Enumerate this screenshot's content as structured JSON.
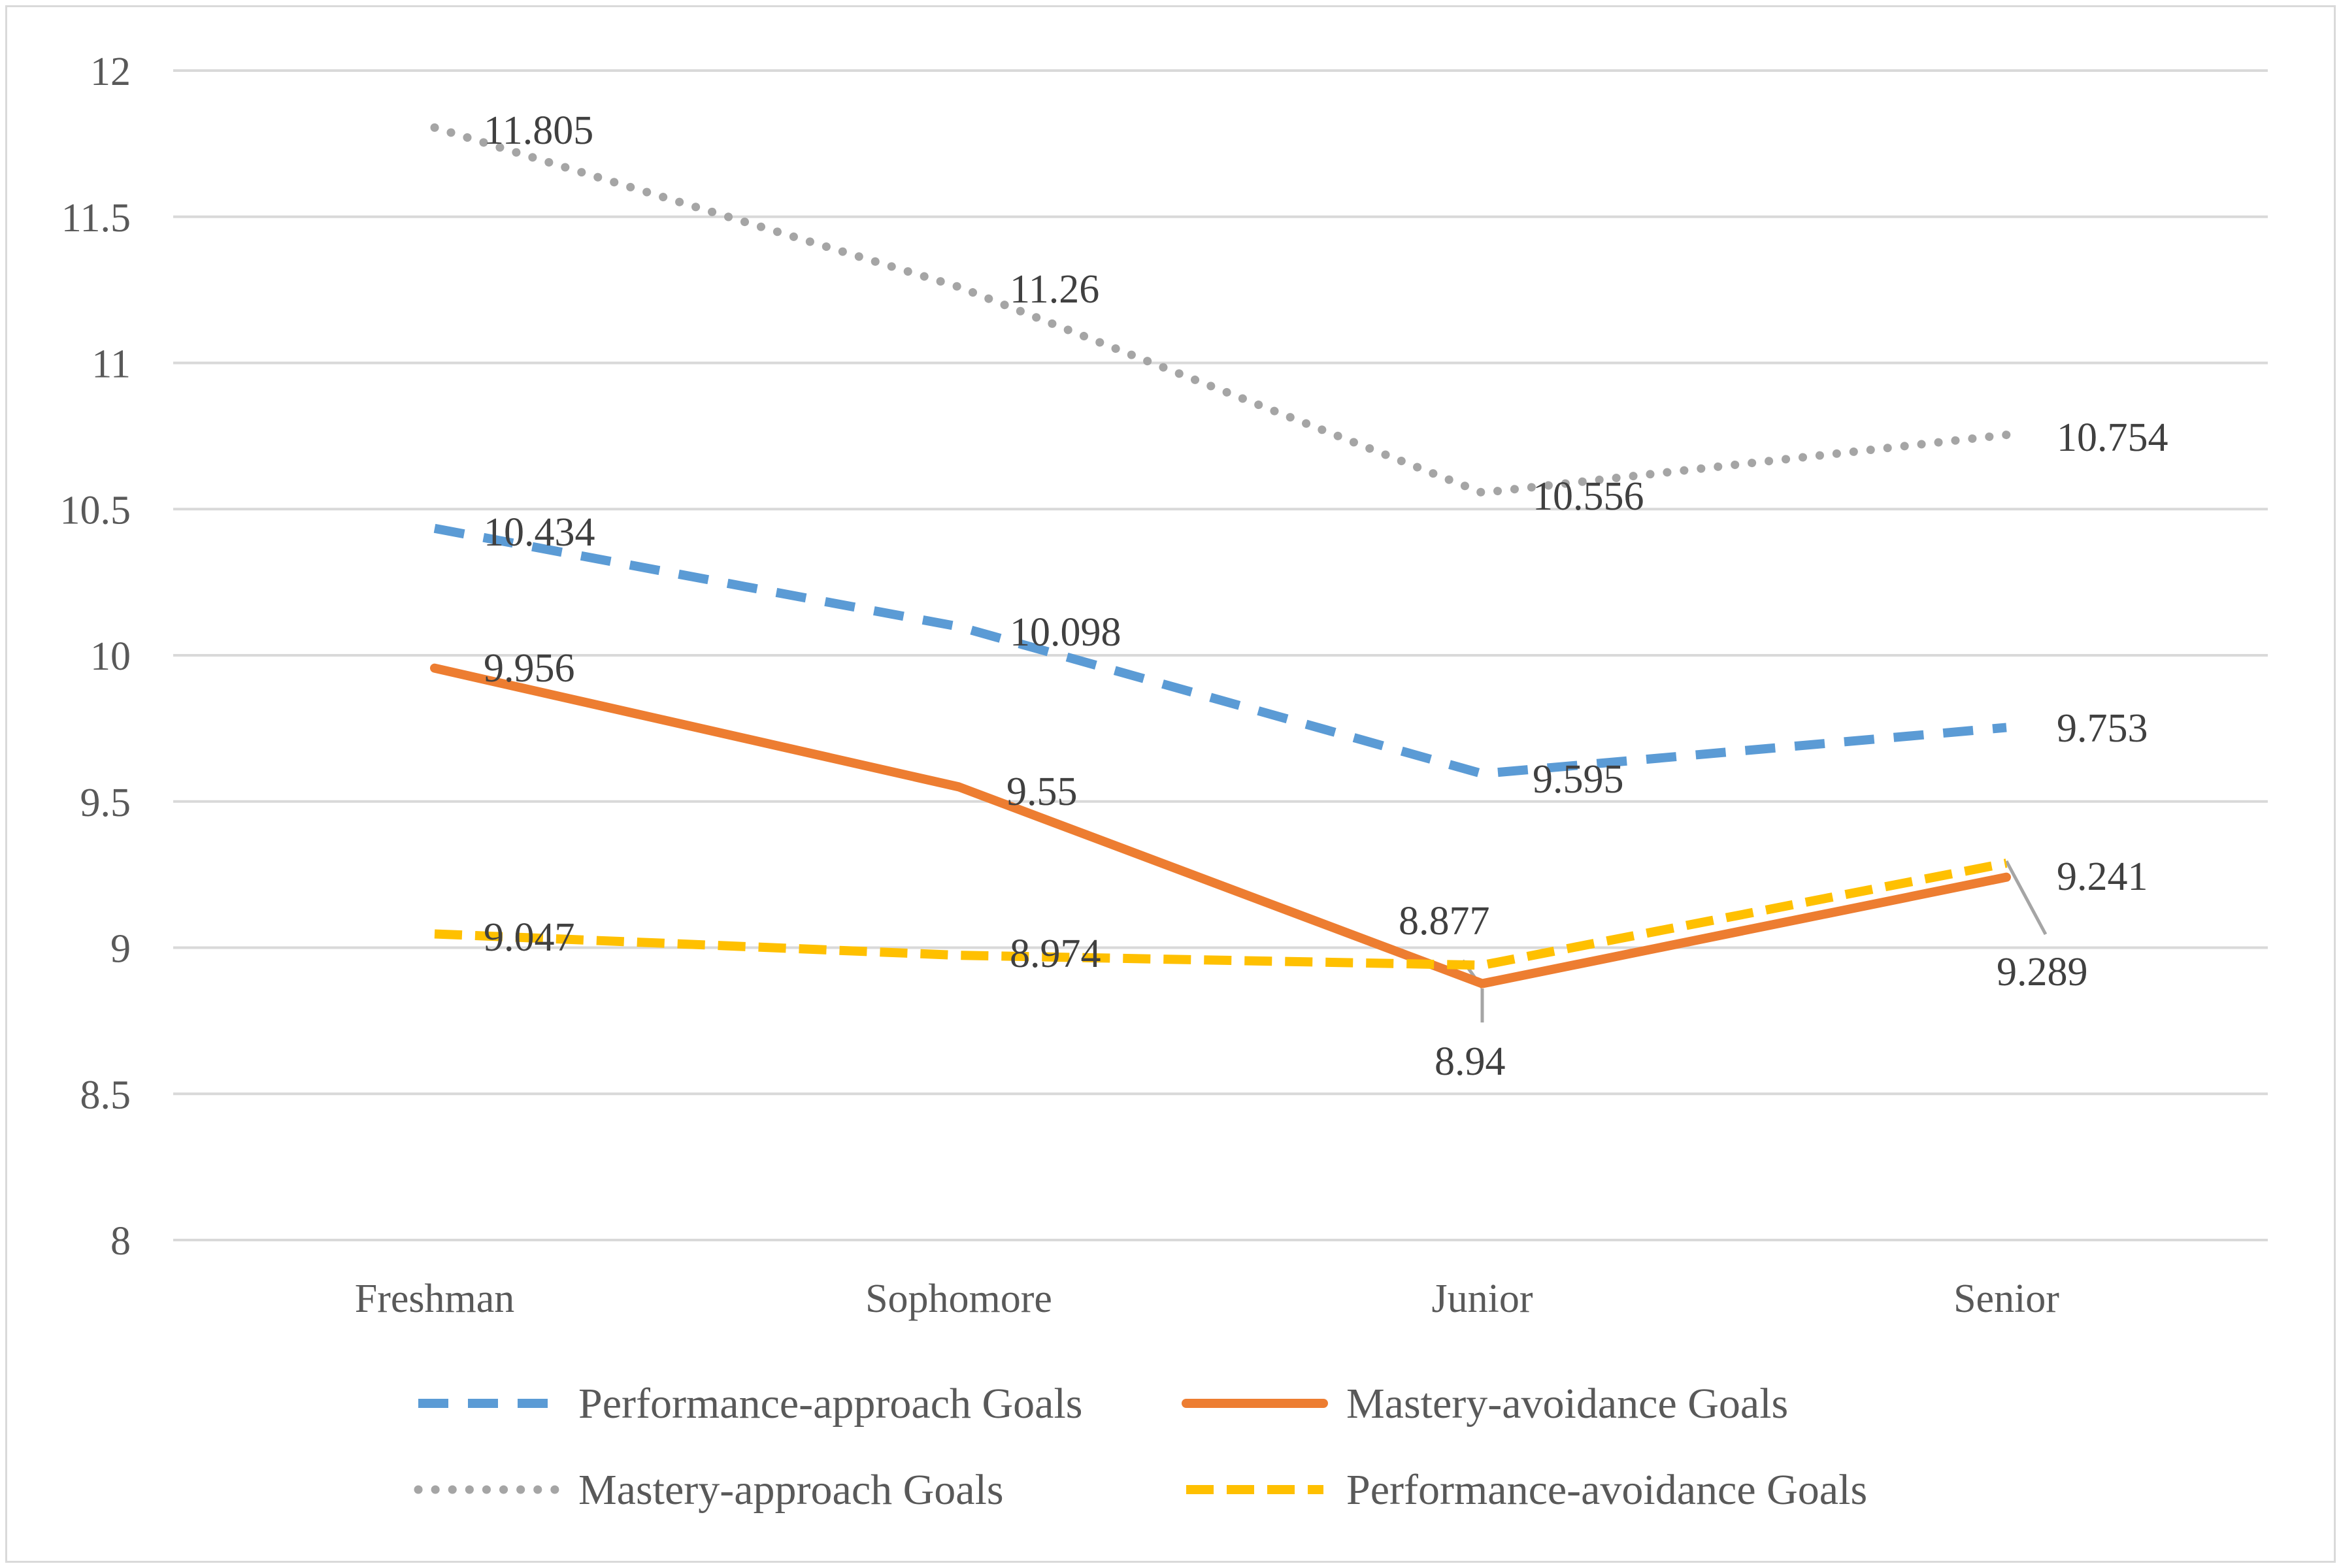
{
  "chart_data": {
    "type": "line",
    "title": "",
    "xlabel": "",
    "ylabel": "",
    "categories": [
      "Freshman",
      "Sophomore",
      "Junior",
      "Senior"
    ],
    "ylim": [
      8,
      12
    ],
    "yticks": [
      "8",
      "8.5",
      "9",
      "9.5",
      "10",
      "10.5",
      "11",
      "11.5",
      "12"
    ],
    "grid": true,
    "legend_position": "bottom",
    "series": [
      {
        "name": "Performance-approach Goals",
        "values": [
          10.434,
          10.098,
          9.595,
          9.753
        ],
        "labels": [
          "10.434",
          "10.098",
          "9.595",
          "9.753"
        ],
        "color": "#5b9bd5",
        "style": "dashed"
      },
      {
        "name": "Mastery-avoidance Goals",
        "values": [
          9.956,
          9.55,
          8.877,
          9.241
        ],
        "labels": [
          "9.956",
          "9.55",
          "8.877",
          "9.241"
        ],
        "color": "#ed7d31",
        "style": "solid"
      },
      {
        "name": "Mastery-approach Goals",
        "values": [
          11.805,
          11.26,
          10.556,
          10.754
        ],
        "labels": [
          "11.805",
          "11.26",
          "10.556",
          "10.754"
        ],
        "color": "#a5a5a5",
        "style": "dotted"
      },
      {
        "name": "Performance-avoidance Goals",
        "values": [
          9.047,
          8.974,
          8.94,
          9.289
        ],
        "labels": [
          "9.047",
          "8.974",
          "8.94",
          "9.289"
        ],
        "color": "#ffc000",
        "style": "dashed"
      }
    ]
  }
}
